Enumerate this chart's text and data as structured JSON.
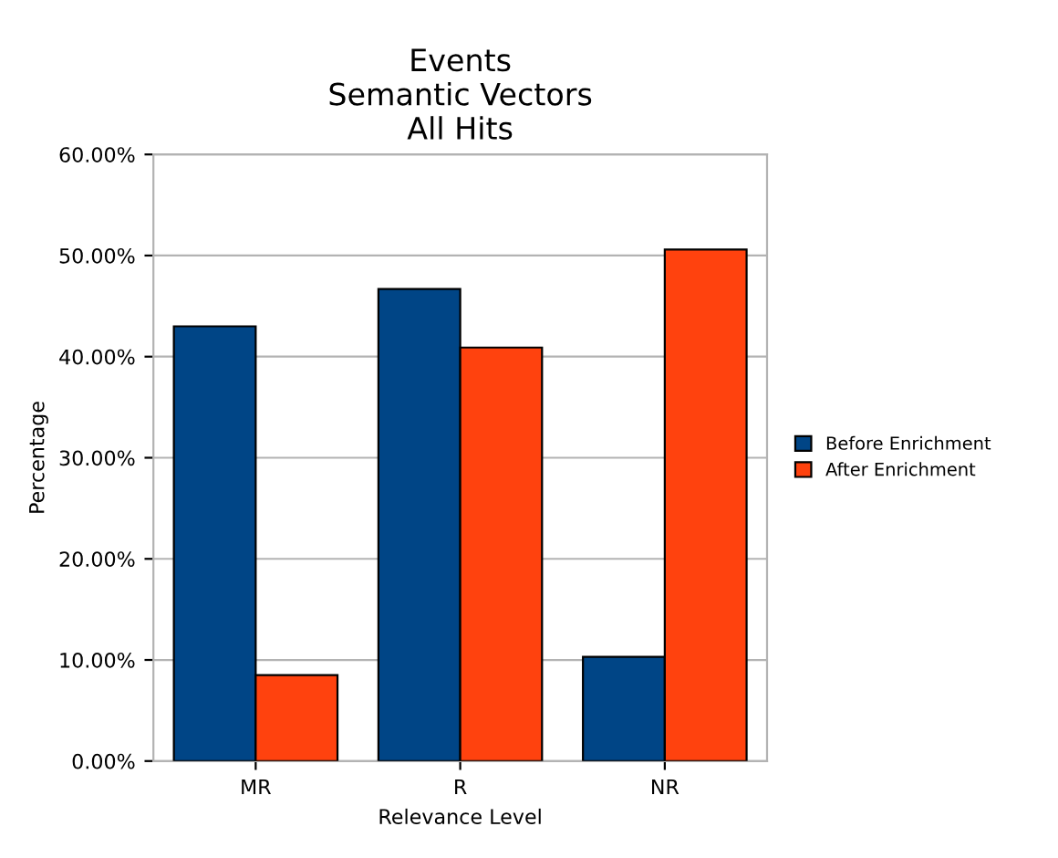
{
  "chart_data": {
    "type": "bar",
    "title": "Events\nSemantic Vectors\nAll Hits",
    "xlabel": "Relevance Level",
    "ylabel": "Percentage",
    "categories": [
      "MR",
      "R",
      "NR"
    ],
    "series": [
      {
        "name": "Before Enrichment",
        "color": "#004586",
        "values": [
          43.0,
          46.7,
          10.3
        ]
      },
      {
        "name": "After Enrichment",
        "color": "#ff420e",
        "values": [
          8.5,
          40.9,
          50.6
        ]
      }
    ],
    "ylim": [
      0,
      60
    ],
    "yticks": [
      {
        "value": 0,
        "label": "0.00%"
      },
      {
        "value": 10,
        "label": "10.00%"
      },
      {
        "value": 20,
        "label": "20.00%"
      },
      {
        "value": 30,
        "label": "30.00%"
      },
      {
        "value": 40,
        "label": "40.00%"
      },
      {
        "value": 50,
        "label": "50.00%"
      },
      {
        "value": 60,
        "label": "60.00%"
      }
    ],
    "grid": "y",
    "legend": "right"
  }
}
